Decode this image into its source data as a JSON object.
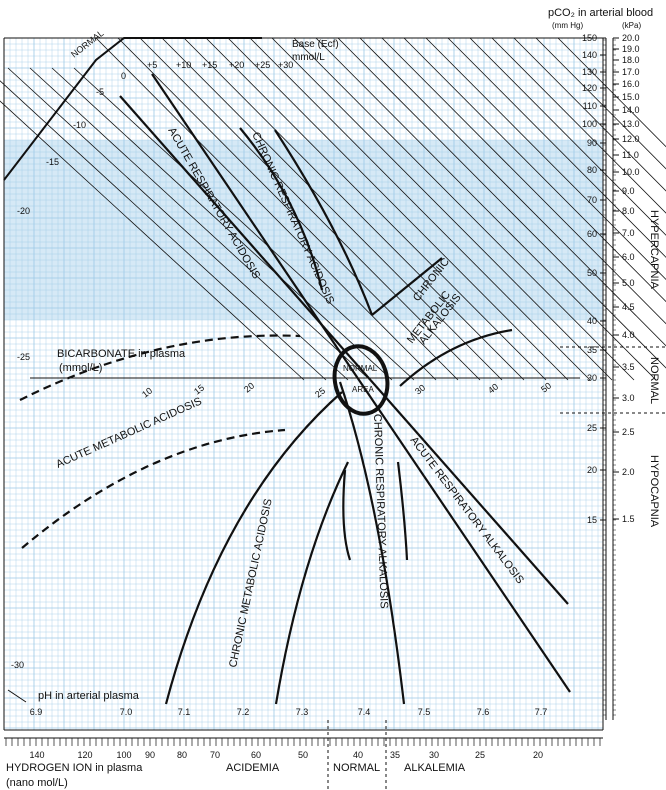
{
  "top": {
    "pco2_title": "pCO₂ in arterial blood",
    "mmhg_unit": "(mm Hg)",
    "kpa_unit": "(kPa)",
    "base_title": "Base (Ecf)",
    "base_unit": "mmol/L",
    "normal_tag": "NORMAL"
  },
  "base_excess_labels": [
    "+5",
    "+10",
    "+15",
    "+20",
    "+25",
    "+30"
  ],
  "base_deficit_labels": [
    "0",
    "-5",
    "-10",
    "-15",
    "-20",
    "-25",
    "-30"
  ],
  "mmhg_ticks": [
    "150",
    "140",
    "130",
    "120",
    "110",
    "100",
    "90",
    "80",
    "70",
    "60",
    "50",
    "40",
    "35",
    "30",
    "25",
    "20",
    "15"
  ],
  "kpa_ticks": [
    "20.0",
    "19.0",
    "18.0",
    "17.0",
    "16.0",
    "15.0",
    "14.0",
    "13.0",
    "12.0",
    "11.0",
    "10.0",
    "9.0",
    "8.0",
    "7.0",
    "6.0",
    "5.0",
    "4.5",
    "4.0",
    "3.5",
    "3.0",
    "2.5",
    "2.0",
    "1.5"
  ],
  "right_side": {
    "hypercapnia": "HYPERCAPNIA",
    "normal": "NORMAL",
    "hypocapnia": "HYPOCAPNIA"
  },
  "bicarbonate": {
    "title": "BICARBONATE in plasma",
    "unit": "(mmol/L)",
    "ticks": [
      "10",
      "15",
      "20",
      "25",
      "30",
      "40",
      "50"
    ]
  },
  "ph": {
    "title": "pH in arterial plasma",
    "ticks": [
      "6.9",
      "7.0",
      "7.1",
      "7.2",
      "7.3",
      "7.4",
      "7.5",
      "7.6",
      "7.7"
    ]
  },
  "hydrogen": {
    "title_line1": "HYDROGEN ION in plasma",
    "title_line2": "(nano mol/L)",
    "ticks": [
      "140",
      "120",
      "100",
      "90",
      "80",
      "70",
      "60",
      "50",
      "40",
      "35",
      "30",
      "25",
      "20"
    ]
  },
  "bottom_bands": {
    "acidemia": "ACIDEMIA",
    "normal": "NORMAL",
    "alkalemia": "ALKALEMIA"
  },
  "regions": {
    "acute_resp_acidosis": "ACUTE RESPIRATORY ACIDOSIS",
    "chronic_resp_acidosis": "CHRONIC RESPIRATORY ACIDOSIS",
    "chronic_met_alk_1": "CHRONIC",
    "chronic_met_alk_2": "METABOLIC",
    "chronic_met_alk_3": "ALKALOSIS",
    "acute_met_acidosis": "ACUTE METABOLIC ACIDOSIS",
    "chronic_met_acidosis": "CHRONIC METABOLIC ACIDOSIS",
    "chronic_resp_alkalosis": "CHRONIC RESPIRATORY ALKALOSIS",
    "acute_resp_alkalosis": "ACUTE RESPIRATORY ALKALOSIS",
    "normal_area_1": "NORMAL",
    "normal_area_2": "AREA"
  },
  "colors": {
    "grid": "#9cc9e6",
    "shade": "#d6e9f6",
    "ink": "#111111"
  }
}
